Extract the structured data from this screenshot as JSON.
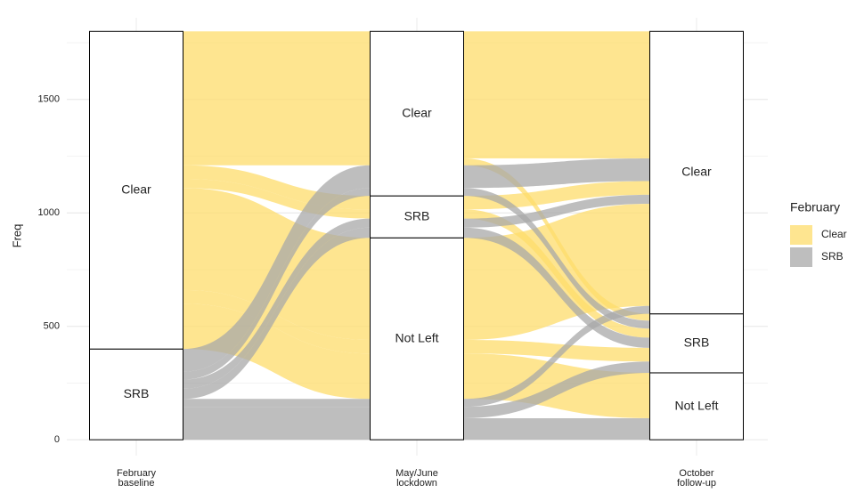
{
  "chart_data": {
    "type": "alluvial",
    "y_label": "Freq",
    "x_labels": [
      [
        "February",
        "baseline"
      ],
      [
        "May/June",
        "lockdown"
      ],
      [
        "October",
        "follow-up"
      ]
    ],
    "strata": [
      "Clear",
      "SRB",
      "Not Left"
    ],
    "legend_title": "February",
    "fill_groups": [
      {
        "name": "Clear",
        "color": "#fddc6b"
      },
      {
        "name": "SRB",
        "color": "#a8a8a8"
      }
    ],
    "flows": [
      {
        "path": [
          "Clear",
          "Clear",
          "Clear"
        ],
        "n": 560
      },
      {
        "path": [
          "Clear",
          "Clear",
          "SRB"
        ],
        "n": 30
      },
      {
        "path": [
          "Clear",
          "SRB",
          "Clear"
        ],
        "n": 60
      },
      {
        "path": [
          "Clear",
          "SRB",
          "SRB"
        ],
        "n": 40
      },
      {
        "path": [
          "Clear",
          "Not Left",
          "Clear"
        ],
        "n": 450
      },
      {
        "path": [
          "Clear",
          "Not Left",
          "SRB"
        ],
        "n": 60
      },
      {
        "path": [
          "Clear",
          "Not Left",
          "Not Left"
        ],
        "n": 200
      },
      {
        "path": [
          "SRB",
          "Clear",
          "Clear"
        ],
        "n": 100
      },
      {
        "path": [
          "SRB",
          "Clear",
          "SRB"
        ],
        "n": 35
      },
      {
        "path": [
          "SRB",
          "SRB",
          "Clear"
        ],
        "n": 40
      },
      {
        "path": [
          "SRB",
          "SRB",
          "SRB"
        ],
        "n": 45
      },
      {
        "path": [
          "SRB",
          "Not Left",
          "Clear"
        ],
        "n": 35
      },
      {
        "path": [
          "SRB",
          "Not Left",
          "SRB"
        ],
        "n": 50
      },
      {
        "path": [
          "SRB",
          "Not Left",
          "Not Left"
        ],
        "n": 95
      }
    ],
    "ylim": [
      -70,
      1860
    ],
    "yticks": [
      0,
      500,
      1000,
      1500
    ],
    "y_minor_ticks": [
      250,
      750,
      1250,
      1750
    ],
    "grid": true,
    "legend_position": "right"
  }
}
